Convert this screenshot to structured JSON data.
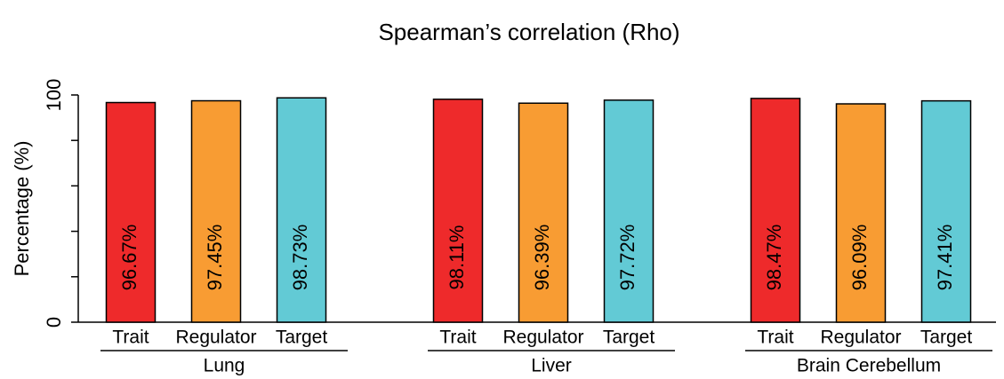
{
  "chart_data": {
    "type": "bar",
    "title": "Spearman’s correlation (Rho)",
    "ylabel": "Percentage (%)",
    "categories": [
      "Lung",
      "Liver",
      "Brain Cerebellum"
    ],
    "series": [
      {
        "name": "Trait",
        "color": "#ee2a2b",
        "values": [
          96.67,
          98.11,
          98.47
        ],
        "value_labels": [
          "96.67%",
          "98.11%",
          "98.47%"
        ]
      },
      {
        "name": "Regulator",
        "color": "#f89c33",
        "values": [
          97.45,
          96.39,
          96.09
        ],
        "value_labels": [
          "97.45%",
          "96.39%",
          "96.09%"
        ]
      },
      {
        "name": "Target",
        "color": "#62cad5",
        "values": [
          98.73,
          97.72,
          97.41
        ],
        "value_labels": [
          "98.73%",
          "97.72%",
          "97.41%"
        ]
      }
    ],
    "ylim": [
      0,
      100
    ],
    "yticks": [
      0,
      100
    ],
    "yticks_minor": [
      20,
      40,
      60,
      80
    ]
  }
}
